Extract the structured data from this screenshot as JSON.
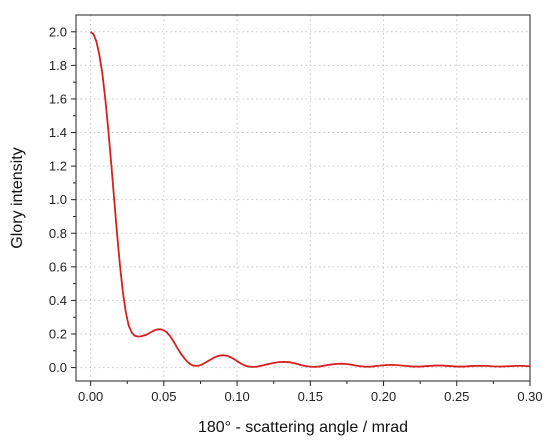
{
  "chart_data": {
    "type": "line",
    "xlabel": "180° - scattering angle / mrad",
    "ylabel": "Glory intensity",
    "xlim": [
      -0.01,
      0.3
    ],
    "ylim": [
      -0.08,
      2.1
    ],
    "grid": true,
    "x_ticks": [
      0.0,
      0.05,
      0.1,
      0.15,
      0.2,
      0.25,
      0.3
    ],
    "x_tick_labels": [
      "0.00",
      "0.05",
      "0.10",
      "0.15",
      "0.20",
      "0.25",
      "0.30"
    ],
    "y_ticks": [
      0.0,
      0.2,
      0.4,
      0.6,
      0.8,
      1.0,
      1.2,
      1.4,
      1.6,
      1.8,
      2.0
    ],
    "y_tick_labels": [
      "0.0",
      "0.2",
      "0.4",
      "0.6",
      "0.8",
      "1.0",
      "1.2",
      "1.4",
      "1.6",
      "1.8",
      "2.0"
    ],
    "series": [
      {
        "color": "#d62020",
        "x": [
          0.0,
          0.002,
          0.004,
          0.006,
          0.008,
          0.01,
          0.012,
          0.014,
          0.016,
          0.018,
          0.02,
          0.022,
          0.024,
          0.026,
          0.028,
          0.03,
          0.032,
          0.034,
          0.036,
          0.038,
          0.04,
          0.042,
          0.044,
          0.046,
          0.048,
          0.05,
          0.052,
          0.054,
          0.056,
          0.058,
          0.06,
          0.062,
          0.064,
          0.066,
          0.068,
          0.07,
          0.072,
          0.074,
          0.076,
          0.078,
          0.08,
          0.082,
          0.084,
          0.086,
          0.088,
          0.09,
          0.092,
          0.094,
          0.096,
          0.098,
          0.1,
          0.102,
          0.104,
          0.106,
          0.108,
          0.11,
          0.112,
          0.114,
          0.116,
          0.118,
          0.12,
          0.124,
          0.128,
          0.132,
          0.136,
          0.14,
          0.144,
          0.148,
          0.152,
          0.156,
          0.16,
          0.164,
          0.168,
          0.172,
          0.176,
          0.18,
          0.184,
          0.188,
          0.192,
          0.196,
          0.2,
          0.205,
          0.21,
          0.215,
          0.22,
          0.225,
          0.23,
          0.235,
          0.24,
          0.245,
          0.25,
          0.255,
          0.26,
          0.265,
          0.27,
          0.275,
          0.28,
          0.285,
          0.29,
          0.295,
          0.3
        ],
        "y": [
          2.0,
          1.985,
          1.94,
          1.86,
          1.75,
          1.6,
          1.42,
          1.22,
          1.01,
          0.8,
          0.61,
          0.45,
          0.33,
          0.25,
          0.21,
          0.19,
          0.185,
          0.185,
          0.19,
          0.195,
          0.205,
          0.215,
          0.223,
          0.228,
          0.228,
          0.222,
          0.21,
          0.19,
          0.165,
          0.135,
          0.105,
          0.078,
          0.055,
          0.035,
          0.02,
          0.012,
          0.01,
          0.012,
          0.018,
          0.028,
          0.038,
          0.048,
          0.058,
          0.066,
          0.071,
          0.073,
          0.072,
          0.068,
          0.06,
          0.05,
          0.038,
          0.027,
          0.018,
          0.01,
          0.006,
          0.004,
          0.004,
          0.006,
          0.01,
          0.014,
          0.018,
          0.026,
          0.032,
          0.034,
          0.032,
          0.024,
          0.014,
          0.007,
          0.004,
          0.006,
          0.012,
          0.018,
          0.022,
          0.023,
          0.02,
          0.014,
          0.008,
          0.005,
          0.006,
          0.01,
          0.014,
          0.016,
          0.014,
          0.01,
          0.006,
          0.006,
          0.009,
          0.012,
          0.012,
          0.009,
          0.006,
          0.006,
          0.009,
          0.011,
          0.01,
          0.007,
          0.006,
          0.008,
          0.01,
          0.01,
          0.008
        ]
      }
    ]
  }
}
